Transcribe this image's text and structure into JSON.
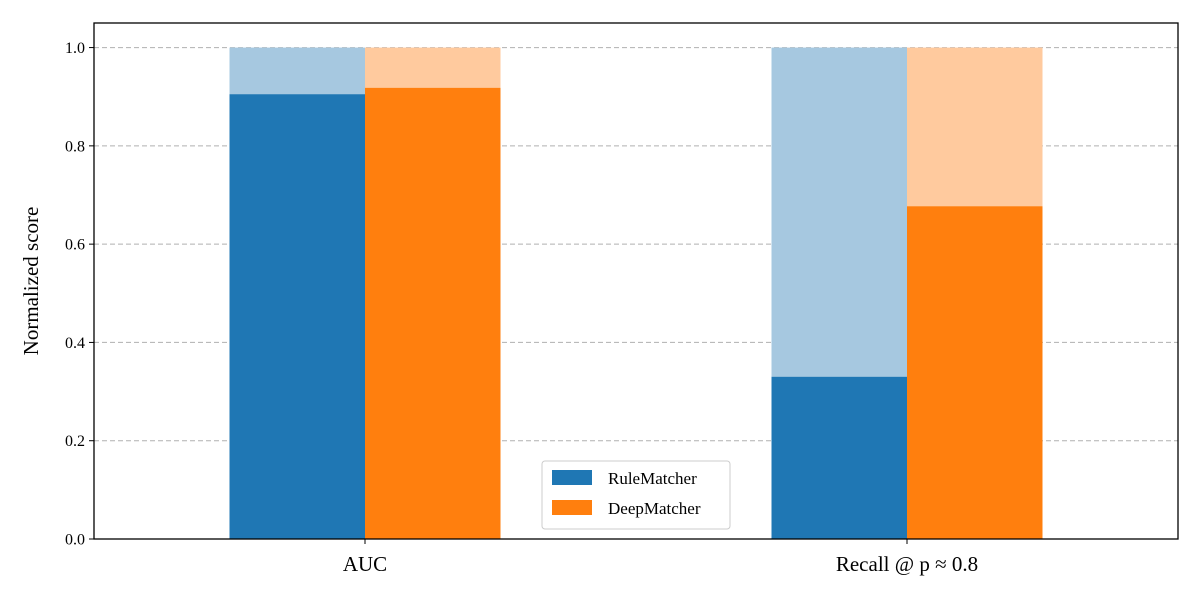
{
  "chart_data": {
    "type": "bar",
    "stacked_overlay": true,
    "categories": [
      "AUC",
      "Recall @ p ≈ 0.8"
    ],
    "series": [
      {
        "name": "RuleMatcher",
        "values": [
          0.905,
          0.33
        ],
        "background_values": [
          1.0,
          1.0
        ],
        "color": "#1f77b4",
        "background_color": "#a6c8e0"
      },
      {
        "name": "DeepMatcher",
        "values": [
          0.918,
          0.677
        ],
        "background_values": [
          1.0,
          1.0
        ],
        "color": "#ff7f0e",
        "background_color": "#ffca9e"
      }
    ],
    "ylabel": "Normalized score",
    "xlabel": "",
    "ylim": [
      0,
      1.05
    ],
    "yticks": [
      0.0,
      0.2,
      0.4,
      0.6,
      0.8,
      1.0
    ],
    "ytick_labels": [
      "0.0",
      "0.2",
      "0.4",
      "0.6",
      "0.8",
      "1.0"
    ],
    "grid": "y-dashed",
    "legend_placement": "bottom-center"
  }
}
